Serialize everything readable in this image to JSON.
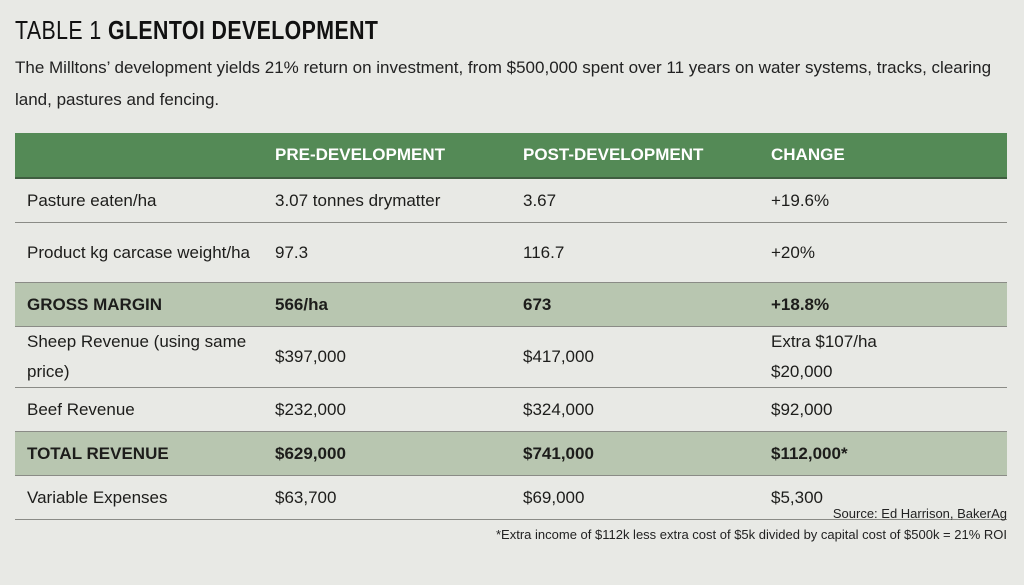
{
  "title": {
    "prefix": "TABLE 1",
    "main": "GLENTOI DEVELOPMENT"
  },
  "subtitle": "The Milltons’ development yields 21% return on investment, from $500,000 spent over 11 years on water systems, tracks, clearing land, pastures and fencing.",
  "table": {
    "headers": [
      "",
      "PRE-DEVELOPMENT",
      "POST-DEVELOPMENT",
      "CHANGE"
    ],
    "rows": [
      [
        "Pasture eaten/ha",
        "3.07 tonnes drymatter",
        "3.67",
        "+19.6%"
      ],
      [
        "Product kg carcase weight/ha",
        "97.3",
        "116.7",
        "+20%"
      ],
      [
        "GROSS MARGIN",
        "566/ha",
        "673",
        "+18.8%"
      ],
      [
        "Sheep Revenue (using same price)",
        "$397,000",
        "$417,000",
        "Extra $107/ha\n$20,000"
      ],
      [
        "Beef Revenue",
        "$232,000",
        "$324,000",
        "$92,000"
      ],
      [
        "TOTAL REVENUE",
        "$629,000",
        "$741,000",
        "$112,000*"
      ],
      [
        "Variable Expenses",
        "$63,700",
        "$69,000",
        "$5,300"
      ]
    ]
  },
  "source": "Source: Ed Harrison, BakerAg",
  "footnote": "*Extra income of $112k less extra cost of $5k divided by capital cost of $500k = 21% ROI",
  "colors": {
    "header": "#548a56",
    "highlight": "#b8c6b0",
    "background": "#e8e9e5"
  }
}
